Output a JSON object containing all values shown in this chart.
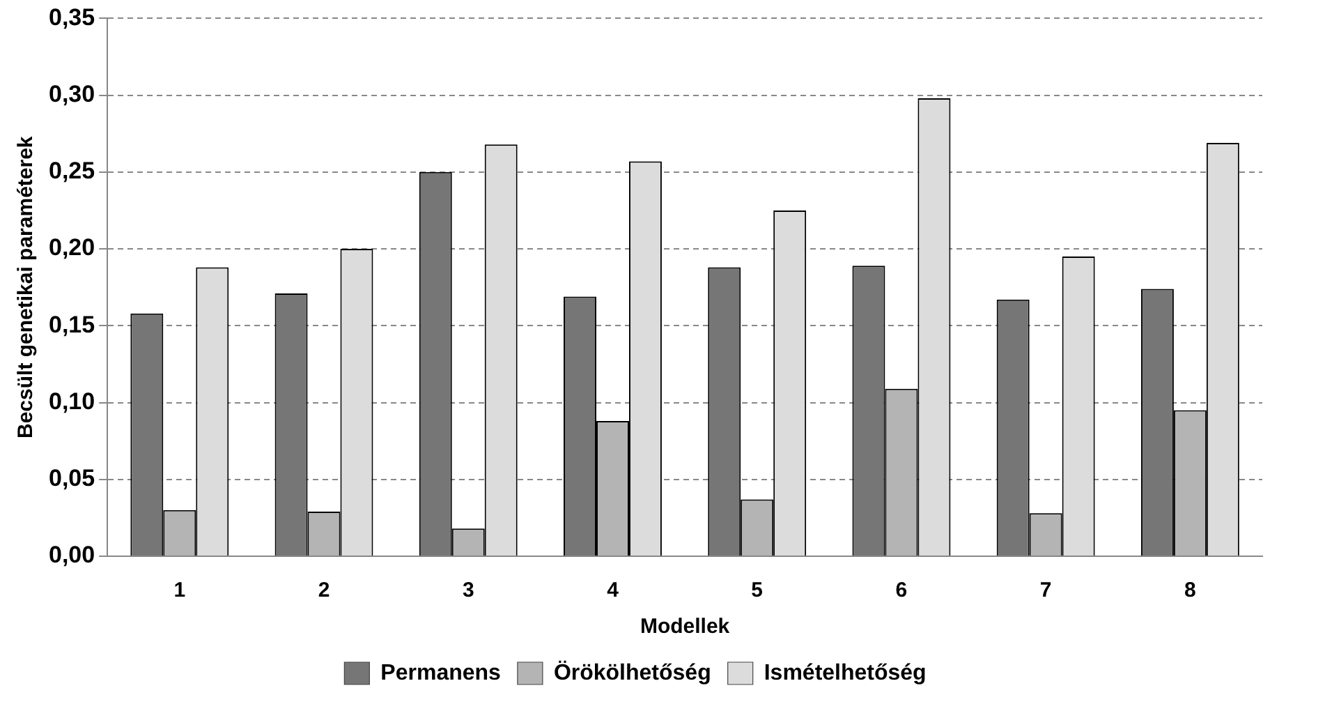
{
  "chart_data": {
    "type": "bar",
    "xlabel": "Modellek",
    "ylabel": "Becsült genetikai paraméterek",
    "categories": [
      "1",
      "2",
      "3",
      "4",
      "5",
      "6",
      "7",
      "8"
    ],
    "series": [
      {
        "name": "Permanens",
        "color": "#767676",
        "values": [
          0.158,
          0.171,
          0.25,
          0.169,
          0.188,
          0.189,
          0.167,
          0.174
        ]
      },
      {
        "name": "Örökölhetőség",
        "color": "#b4b4b4",
        "values": [
          0.03,
          0.029,
          0.018,
          0.088,
          0.037,
          0.109,
          0.028,
          0.095
        ]
      },
      {
        "name": "Ismételhetőség",
        "color": "#dcdcdc",
        "values": [
          0.188,
          0.2,
          0.268,
          0.257,
          0.225,
          0.298,
          0.195,
          0.269
        ]
      }
    ],
    "ylim": [
      0,
      0.35
    ],
    "yticks": [
      {
        "value": 0,
        "label": "0,00"
      },
      {
        "value": 0.05,
        "label": "0,05"
      },
      {
        "value": 0.1,
        "label": "0,10"
      },
      {
        "value": 0.15,
        "label": "0,15"
      },
      {
        "value": 0.2,
        "label": "0,20"
      },
      {
        "value": 0.25,
        "label": "0,25"
      },
      {
        "value": 0.3,
        "label": "0,30"
      },
      {
        "value": 0.35,
        "label": "0,35"
      }
    ],
    "grid": "y",
    "legend": "bottom"
  }
}
